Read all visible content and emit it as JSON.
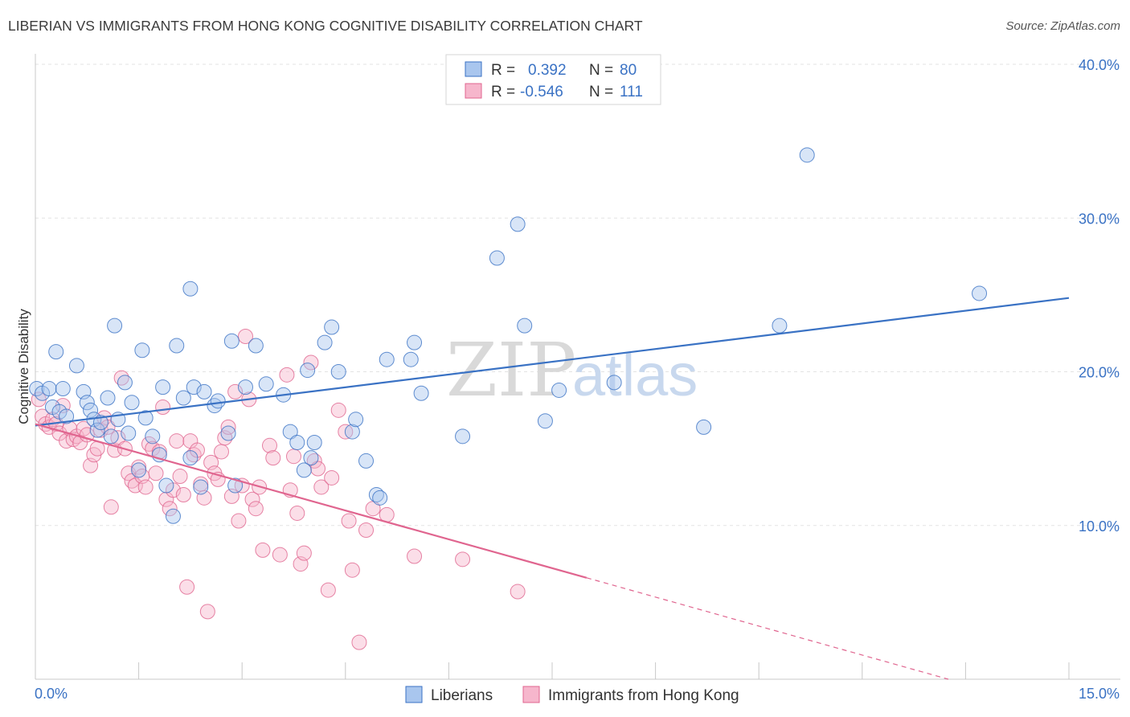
{
  "title": "LIBERIAN VS IMMIGRANTS FROM HONG KONG COGNITIVE DISABILITY CORRELATION CHART",
  "source": "Source: ZipAtlas.com",
  "watermark": {
    "zip": "ZIP",
    "atlas": "atlas"
  },
  "colors": {
    "blue": "#3a72c4",
    "blue_fill": "#a9c6ee",
    "pink": "#e0658f",
    "pink_fill": "#f6b6cc"
  },
  "chart_data": {
    "type": "scatter",
    "xlabel": "",
    "ylabel": "Cognitive Disability",
    "xlim": [
      0,
      15
    ],
    "ylim": [
      0,
      40
    ],
    "x_tick_labels": [
      "0.0%",
      "15.0%"
    ],
    "y_ticks": [
      10,
      20,
      30,
      40
    ],
    "y_tick_labels": [
      "10.0%",
      "20.0%",
      "30.0%",
      "40.0%"
    ],
    "grid": true,
    "legend_top": [
      {
        "r_label": "R =",
        "r_value": "0.392",
        "n_label": "N =",
        "n_value": "80"
      },
      {
        "r_label": "R =",
        "r_value": "-0.546",
        "n_label": "N =",
        "n_value": "111"
      }
    ],
    "legend_bottom": [
      "Liberians",
      "Immigrants from Hong Kong"
    ],
    "series": [
      {
        "name": "Liberians",
        "color": "#3a72c4",
        "trend": {
          "x": [
            0.0,
            15.0
          ],
          "y": [
            16.5,
            24.8
          ]
        },
        "points": [
          [
            0.02,
            18.9
          ],
          [
            0.1,
            18.6
          ],
          [
            0.2,
            18.9
          ],
          [
            0.25,
            17.7
          ],
          [
            0.3,
            21.3
          ],
          [
            0.35,
            17.4
          ],
          [
            0.4,
            18.9
          ],
          [
            0.45,
            17.1
          ],
          [
            0.6,
            20.4
          ],
          [
            0.7,
            18.7
          ],
          [
            0.75,
            18.0
          ],
          [
            0.8,
            17.5
          ],
          [
            0.85,
            16.9
          ],
          [
            0.9,
            16.2
          ],
          [
            0.95,
            16.7
          ],
          [
            1.05,
            18.3
          ],
          [
            1.1,
            15.8
          ],
          [
            1.15,
            23.0
          ],
          [
            1.2,
            16.9
          ],
          [
            1.3,
            19.3
          ],
          [
            1.35,
            16.0
          ],
          [
            1.4,
            18.0
          ],
          [
            1.5,
            13.6
          ],
          [
            1.55,
            21.4
          ],
          [
            1.6,
            17.0
          ],
          [
            1.7,
            15.8
          ],
          [
            1.8,
            14.6
          ],
          [
            1.85,
            19.0
          ],
          [
            1.9,
            12.6
          ],
          [
            2.0,
            10.6
          ],
          [
            2.05,
            21.7
          ],
          [
            2.15,
            18.3
          ],
          [
            2.25,
            14.4
          ],
          [
            2.25,
            25.4
          ],
          [
            2.3,
            19.0
          ],
          [
            2.4,
            12.5
          ],
          [
            2.45,
            18.7
          ],
          [
            2.6,
            17.8
          ],
          [
            2.65,
            18.1
          ],
          [
            2.8,
            16.0
          ],
          [
            2.85,
            22.0
          ],
          [
            2.9,
            12.6
          ],
          [
            3.05,
            19.0
          ],
          [
            3.2,
            21.7
          ],
          [
            3.35,
            19.2
          ],
          [
            3.6,
            18.5
          ],
          [
            3.7,
            16.1
          ],
          [
            3.8,
            15.4
          ],
          [
            3.9,
            13.6
          ],
          [
            3.95,
            20.1
          ],
          [
            4.0,
            14.4
          ],
          [
            4.05,
            15.4
          ],
          [
            4.2,
            21.9
          ],
          [
            4.3,
            22.9
          ],
          [
            4.4,
            20.0
          ],
          [
            4.6,
            16.1
          ],
          [
            4.65,
            16.9
          ],
          [
            4.8,
            14.2
          ],
          [
            4.95,
            12.0
          ],
          [
            5.0,
            11.8
          ],
          [
            5.1,
            20.8
          ],
          [
            5.45,
            20.8
          ],
          [
            5.5,
            21.9
          ],
          [
            5.6,
            18.6
          ],
          [
            6.2,
            15.8
          ],
          [
            6.7,
            27.4
          ],
          [
            7.0,
            29.6
          ],
          [
            7.1,
            23.0
          ],
          [
            7.4,
            16.8
          ],
          [
            7.6,
            18.8
          ],
          [
            8.4,
            19.3
          ],
          [
            9.7,
            16.4
          ],
          [
            10.8,
            23.0
          ],
          [
            11.2,
            34.1
          ],
          [
            13.7,
            25.1
          ]
        ]
      },
      {
        "name": "Immigrants from Hong Kong",
        "color": "#e0658f",
        "trend": {
          "x": [
            0.0,
            8.0
          ],
          "y": [
            16.6,
            6.6
          ]
        },
        "trend_dashed": {
          "x": [
            8.0,
            15.0
          ],
          "y": [
            6.6,
            -2.2
          ]
        },
        "points": [
          [
            0.05,
            18.2
          ],
          [
            0.1,
            17.1
          ],
          [
            0.15,
            16.6
          ],
          [
            0.2,
            16.4
          ],
          [
            0.25,
            16.9
          ],
          [
            0.3,
            16.6
          ],
          [
            0.35,
            16.0
          ],
          [
            0.4,
            17.8
          ],
          [
            0.45,
            15.5
          ],
          [
            0.5,
            16.3
          ],
          [
            0.55,
            15.6
          ],
          [
            0.6,
            15.8
          ],
          [
            0.65,
            15.4
          ],
          [
            0.7,
            16.3
          ],
          [
            0.75,
            15.9
          ],
          [
            0.8,
            13.9
          ],
          [
            0.85,
            14.6
          ],
          [
            0.9,
            15.0
          ],
          [
            0.95,
            16.2
          ],
          [
            1.0,
            17.0
          ],
          [
            1.05,
            16.4
          ],
          [
            1.1,
            11.2
          ],
          [
            1.15,
            14.9
          ],
          [
            1.2,
            15.7
          ],
          [
            1.25,
            19.6
          ],
          [
            1.3,
            15.0
          ],
          [
            1.35,
            13.4
          ],
          [
            1.4,
            12.9
          ],
          [
            1.45,
            12.6
          ],
          [
            1.5,
            13.8
          ],
          [
            1.55,
            13.2
          ],
          [
            1.6,
            12.5
          ],
          [
            1.65,
            15.3
          ],
          [
            1.7,
            15.0
          ],
          [
            1.75,
            13.4
          ],
          [
            1.8,
            14.8
          ],
          [
            1.85,
            17.7
          ],
          [
            1.9,
            11.7
          ],
          [
            1.95,
            11.1
          ],
          [
            2.0,
            12.3
          ],
          [
            2.05,
            15.5
          ],
          [
            2.1,
            13.2
          ],
          [
            2.15,
            12.0
          ],
          [
            2.2,
            6.0
          ],
          [
            2.25,
            15.5
          ],
          [
            2.3,
            14.6
          ],
          [
            2.35,
            14.9
          ],
          [
            2.4,
            12.7
          ],
          [
            2.45,
            11.8
          ],
          [
            2.5,
            4.4
          ],
          [
            2.55,
            14.1
          ],
          [
            2.6,
            13.4
          ],
          [
            2.65,
            13.0
          ],
          [
            2.7,
            14.8
          ],
          [
            2.75,
            15.7
          ],
          [
            2.8,
            16.4
          ],
          [
            2.85,
            11.9
          ],
          [
            2.9,
            18.7
          ],
          [
            2.95,
            10.3
          ],
          [
            3.0,
            12.6
          ],
          [
            3.05,
            22.3
          ],
          [
            3.1,
            18.2
          ],
          [
            3.15,
            11.7
          ],
          [
            3.2,
            11.1
          ],
          [
            3.25,
            12.5
          ],
          [
            3.3,
            8.4
          ],
          [
            3.4,
            15.2
          ],
          [
            3.45,
            14.4
          ],
          [
            3.55,
            8.1
          ],
          [
            3.65,
            19.8
          ],
          [
            3.7,
            12.3
          ],
          [
            3.75,
            14.5
          ],
          [
            3.8,
            10.8
          ],
          [
            3.85,
            7.5
          ],
          [
            3.9,
            8.2
          ],
          [
            4.0,
            20.6
          ],
          [
            4.05,
            14.2
          ],
          [
            4.1,
            13.7
          ],
          [
            4.15,
            12.5
          ],
          [
            4.25,
            5.8
          ],
          [
            4.3,
            13.1
          ],
          [
            4.4,
            17.5
          ],
          [
            4.5,
            16.1
          ],
          [
            4.55,
            10.3
          ],
          [
            4.6,
            7.1
          ],
          [
            4.7,
            2.4
          ],
          [
            4.8,
            9.7
          ],
          [
            4.9,
            11.1
          ],
          [
            5.1,
            10.7
          ],
          [
            5.5,
            8.0
          ],
          [
            6.2,
            7.8
          ],
          [
            7.0,
            5.7
          ]
        ]
      }
    ]
  }
}
